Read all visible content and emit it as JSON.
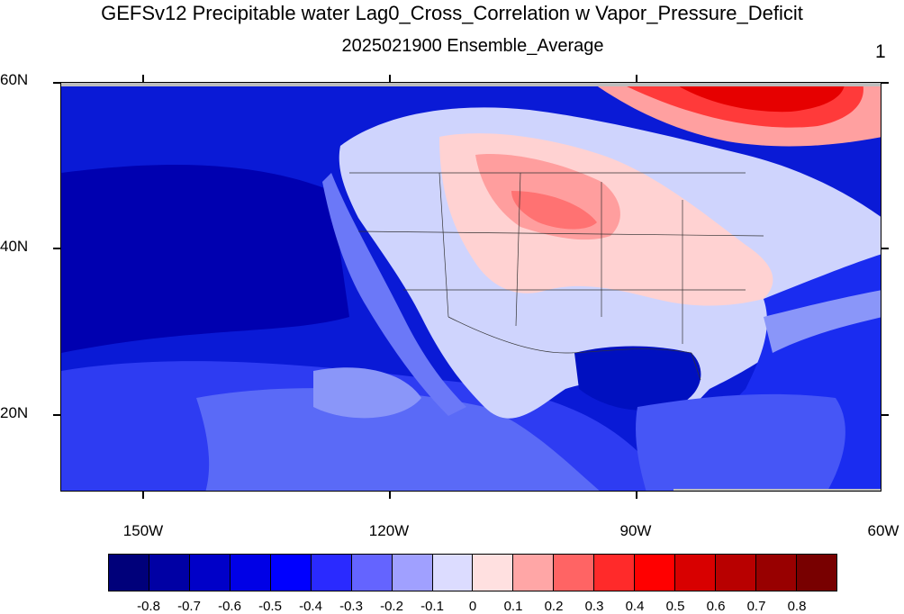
{
  "header": {
    "title": "GEFSv12 Precipitable water Lag0_Cross_Correlation w Vapor_Pressure_Deficit",
    "subtitle": "2025021900 Ensemble_Average",
    "panel_number": "1"
  },
  "map": {
    "lat_labels": [
      "60N",
      "40N",
      "20N"
    ],
    "lon_labels": [
      "150W",
      "120W",
      "90W",
      "60W"
    ],
    "extent": {
      "lon": [
        -160,
        -60
      ],
      "lat": [
        10,
        60
      ]
    }
  },
  "colorbar": {
    "colors": [
      "#00007a",
      "#0000a4",
      "#0000c8",
      "#0000e6",
      "#0000ff",
      "#2a2aff",
      "#6464ff",
      "#a0a0ff",
      "#dcdcff",
      "#ffe0e0",
      "#ffa6a6",
      "#ff6464",
      "#ff2a2a",
      "#ff0000",
      "#d80000",
      "#b80000",
      "#980000",
      "#780000"
    ],
    "labels": [
      "-0.8",
      "-0.7",
      "-0.6",
      "-0.5",
      "-0.4",
      "-0.3",
      "-0.2",
      "-0.1",
      "0",
      "0.1",
      "0.2",
      "0.3",
      "0.4",
      "0.5",
      "0.6",
      "0.7",
      "0.8"
    ]
  }
}
